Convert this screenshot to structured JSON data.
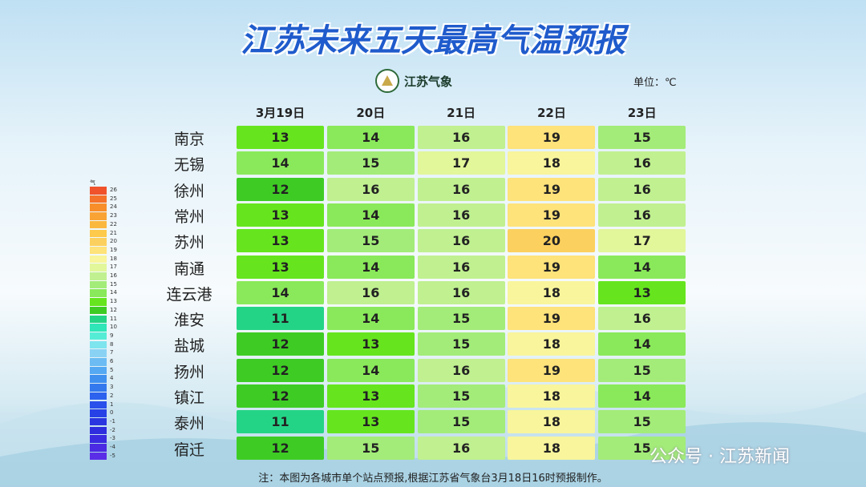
{
  "header": {
    "title": "江苏未来五天最高气温预报",
    "logo": "江苏气象",
    "unit": "单位：℃"
  },
  "table": {
    "columns": [
      "3月19日",
      "20日",
      "21日",
      "22日",
      "23日"
    ],
    "rows": [
      {
        "city": "南京",
        "values": [
          13,
          14,
          16,
          19,
          15
        ]
      },
      {
        "city": "无锡",
        "values": [
          14,
          15,
          17,
          18,
          16
        ]
      },
      {
        "city": "徐州",
        "values": [
          12,
          16,
          16,
          19,
          16
        ]
      },
      {
        "city": "常州",
        "values": [
          13,
          14,
          16,
          19,
          16
        ]
      },
      {
        "city": "苏州",
        "values": [
          13,
          15,
          16,
          20,
          17
        ]
      },
      {
        "city": "南通",
        "values": [
          13,
          14,
          16,
          19,
          14
        ]
      },
      {
        "city": "连云港",
        "values": [
          14,
          16,
          16,
          18,
          13
        ]
      },
      {
        "city": "淮安",
        "values": [
          11,
          14,
          15,
          19,
          16
        ]
      },
      {
        "city": "盐城",
        "values": [
          12,
          13,
          15,
          18,
          14
        ]
      },
      {
        "city": "扬州",
        "values": [
          12,
          14,
          16,
          19,
          15
        ]
      },
      {
        "city": "镇江",
        "values": [
          12,
          13,
          15,
          18,
          14
        ]
      },
      {
        "city": "泰州",
        "values": [
          11,
          13,
          15,
          18,
          15
        ]
      },
      {
        "city": "宿迁",
        "values": [
          12,
          15,
          16,
          18,
          15
        ]
      }
    ]
  },
  "legend": {
    "title": "气温: ℃",
    "items": [
      {
        "value": 26,
        "color": "#f0522c"
      },
      {
        "value": 25,
        "color": "#f5722a"
      },
      {
        "value": 24,
        "color": "#f88e2a"
      },
      {
        "value": 23,
        "color": "#f9a335"
      },
      {
        "value": 22,
        "color": "#fbb83f"
      },
      {
        "value": 21,
        "color": "#fdca4b"
      },
      {
        "value": 20,
        "color": "#fcd05e"
      },
      {
        "value": 19,
        "color": "#fee27a"
      },
      {
        "value": 18,
        "color": "#f8f59c"
      },
      {
        "value": 17,
        "color": "#e2f69a"
      },
      {
        "value": 16,
        "color": "#c0f090"
      },
      {
        "value": 15,
        "color": "#a3ec79"
      },
      {
        "value": 14,
        "color": "#8ae95a"
      },
      {
        "value": 13,
        "color": "#66e51e"
      },
      {
        "value": 12,
        "color": "#3ecc24"
      },
      {
        "value": 11,
        "color": "#24d486"
      },
      {
        "value": 10,
        "color": "#2ee6b8"
      },
      {
        "value": 9,
        "color": "#55ecd6"
      },
      {
        "value": 8,
        "color": "#7ee4ee"
      },
      {
        "value": 7,
        "color": "#8ad2f4"
      },
      {
        "value": 6,
        "color": "#6cbcf3"
      },
      {
        "value": 5,
        "color": "#55a8f2"
      },
      {
        "value": 4,
        "color": "#4090ef"
      },
      {
        "value": 3,
        "color": "#3478ee"
      },
      {
        "value": 2,
        "color": "#2c62ee"
      },
      {
        "value": 1,
        "color": "#2950ea"
      },
      {
        "value": 0,
        "color": "#2642e6"
      },
      {
        "value": -1,
        "color": "#2a36e0"
      },
      {
        "value": -2,
        "color": "#2e2ede"
      },
      {
        "value": -3,
        "color": "#3a2ae0"
      },
      {
        "value": -4,
        "color": "#4a2ae2"
      },
      {
        "value": -5,
        "color": "#5a2ee6"
      }
    ]
  },
  "footer": {
    "note": "注：本图为各城市单个站点预报,根据江苏省气象台3月18日16时预报制作。",
    "watermark": "公众号 · 江苏新闻"
  }
}
